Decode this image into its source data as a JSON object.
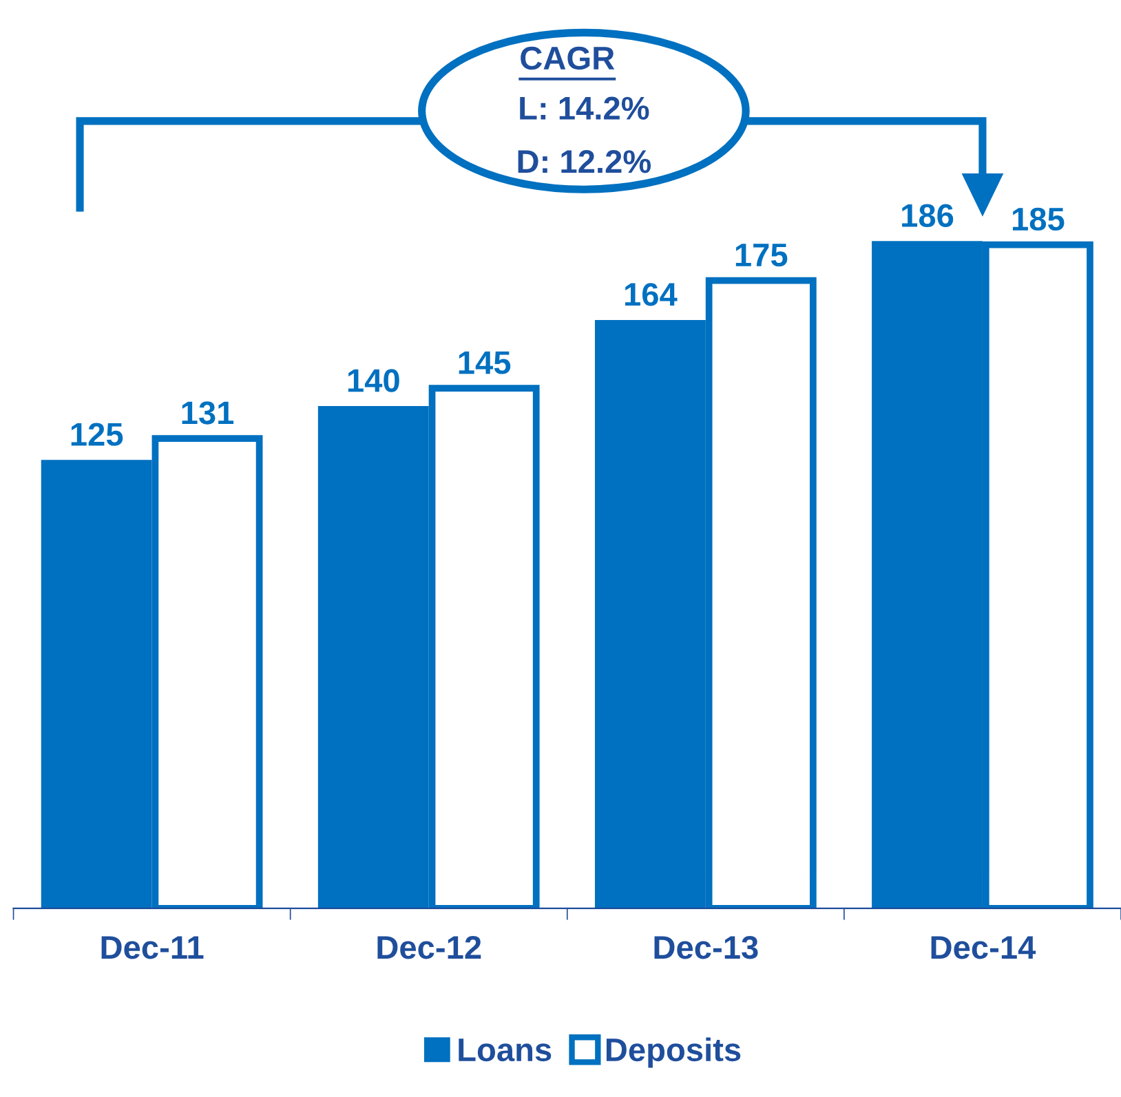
{
  "chart_data": {
    "type": "bar",
    "categories": [
      "Dec-11",
      "Dec-12",
      "Dec-13",
      "Dec-14"
    ],
    "series": [
      {
        "name": "Loans",
        "color": "#0070c0",
        "values": [
          125,
          140,
          164,
          186
        ]
      },
      {
        "name": "Deposits",
        "color": "#0070c0",
        "values": [
          131,
          145,
          175,
          185
        ]
      }
    ],
    "data_labels": true,
    "legend": "bottom",
    "grid": false,
    "annotations": [
      "CAGR",
      "L: 14.2%",
      "D: 12.2%"
    ]
  }
}
